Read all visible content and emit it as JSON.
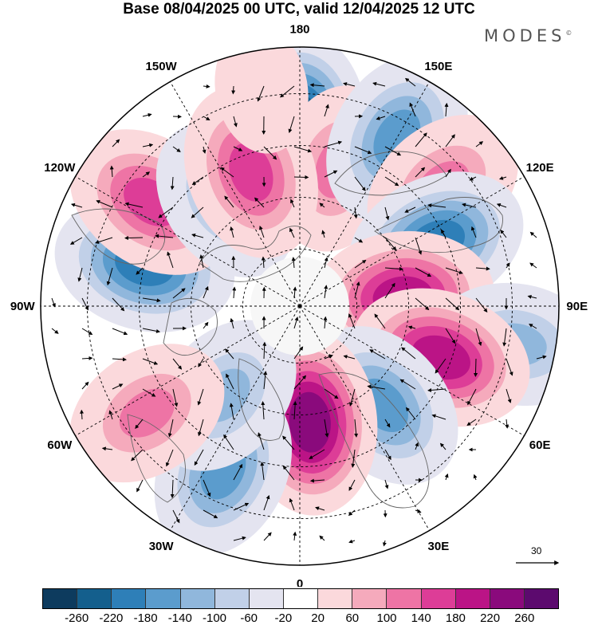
{
  "title": "Base 08/04/2025 00 UTC, valid 12/04/2025 12 UTC",
  "brand": "MODES",
  "brand_mark": "©",
  "longitude_labels": [
    "180",
    "150E",
    "120E",
    "90E",
    "60E",
    "30E",
    "0",
    "30W",
    "60W",
    "90W",
    "120W",
    "150W"
  ],
  "vector_scale_label": "30",
  "colorbar": {
    "labels": [
      "-260",
      "-220",
      "-180",
      "-140",
      "-100",
      "-60",
      "-20",
      "20",
      "60",
      "100",
      "140",
      "180",
      "220",
      "260"
    ],
    "colors": [
      "#0d3b5e",
      "#145f8d",
      "#2e7fb8",
      "#5b9ccd",
      "#90b7dc",
      "#c1d0e8",
      "#e4e4f0",
      "#ffffff",
      "#fbd9dc",
      "#f5aabc",
      "#ee74a5",
      "#dd3d97",
      "#bb1486",
      "#8a0a7c",
      "#5c0a6e"
    ]
  },
  "anomaly_centers": [
    {
      "lon": 180,
      "dist": 0.7,
      "value": -230
    },
    {
      "lon": 165,
      "dist": 0.55,
      "value": 140
    },
    {
      "lon": 150,
      "dist": 0.75,
      "value": -150
    },
    {
      "lon": 130,
      "dist": 0.72,
      "value": 120
    },
    {
      "lon": 115,
      "dist": 0.58,
      "value": -210
    },
    {
      "lon": 95,
      "dist": 0.4,
      "value": 200
    },
    {
      "lon": 80,
      "dist": 0.85,
      "value": -110
    },
    {
      "lon": 70,
      "dist": 0.58,
      "value": 190
    },
    {
      "lon": 40,
      "dist": 0.5,
      "value": -150
    },
    {
      "lon": 5,
      "dist": 0.45,
      "value": 230
    },
    {
      "lon": -25,
      "dist": 0.7,
      "value": -170
    },
    {
      "lon": -40,
      "dist": 0.45,
      "value": -120
    },
    {
      "lon": -55,
      "dist": 0.72,
      "value": 110
    },
    {
      "lon": -105,
      "dist": 0.62,
      "value": -210
    },
    {
      "lon": -125,
      "dist": 0.7,
      "value": 160
    },
    {
      "lon": -145,
      "dist": 0.5,
      "value": -130
    },
    {
      "lon": -160,
      "dist": 0.55,
      "value": 150
    },
    {
      "lon": -170,
      "dist": 0.85,
      "value": 60
    }
  ]
}
